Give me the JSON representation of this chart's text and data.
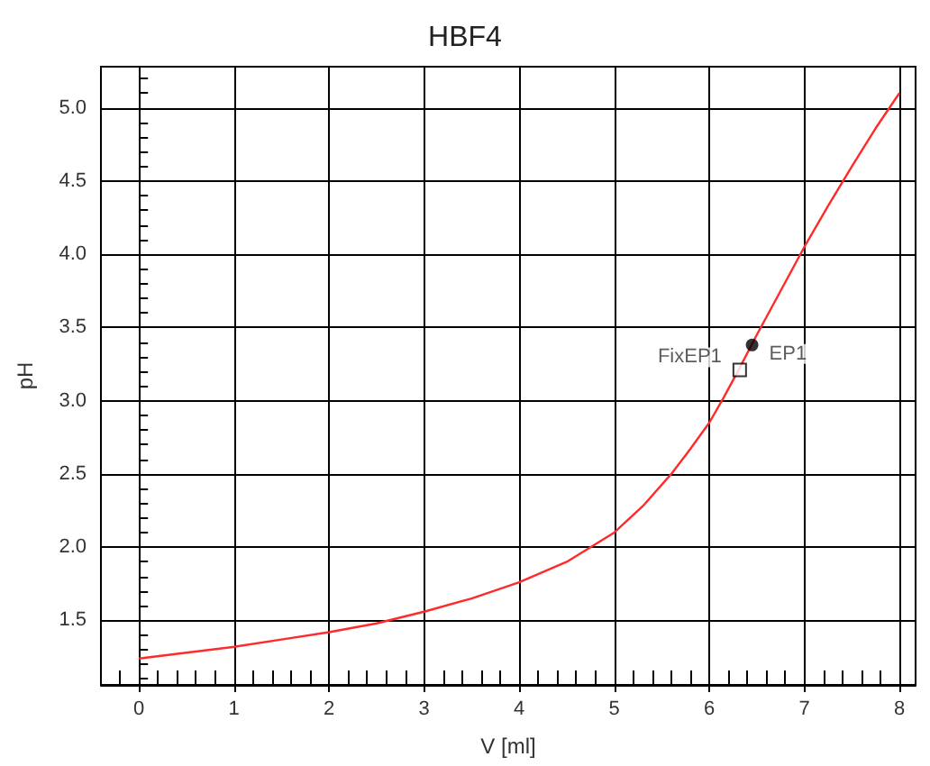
{
  "chart_data": {
    "type": "line",
    "title": "HBF4",
    "xlabel": "V [ml]",
    "ylabel": "pH",
    "xlim": [
      -0.4,
      8.17
    ],
    "ylim": [
      1.06,
      5.28
    ],
    "grid": true,
    "xticks": [
      {
        "value": -0.2,
        "label": null
      },
      0,
      {
        "value": 0.2,
        "label": null
      },
      {
        "value": 0.4,
        "label": null
      },
      {
        "value": 0.6,
        "label": null
      },
      {
        "value": 0.8,
        "label": null
      },
      1,
      {
        "value": 1.2,
        "label": null
      },
      {
        "value": 1.4,
        "label": null
      },
      {
        "value": 1.6,
        "label": null
      },
      {
        "value": 1.8,
        "label": null
      },
      2,
      {
        "value": 2.2,
        "label": null
      },
      {
        "value": 2.4,
        "label": null
      },
      {
        "value": 2.6,
        "label": null
      },
      {
        "value": 2.8,
        "label": null
      },
      3,
      {
        "value": 3.2,
        "label": null
      },
      {
        "value": 3.4,
        "label": null
      },
      {
        "value": 3.6,
        "label": null
      },
      {
        "value": 3.8,
        "label": null
      },
      4,
      {
        "value": 4.2,
        "label": null
      },
      {
        "value": 4.4,
        "label": null
      },
      {
        "value": 4.6,
        "label": null
      },
      {
        "value": 4.8,
        "label": null
      },
      5,
      {
        "value": 5.2,
        "label": null
      },
      {
        "value": 5.4,
        "label": null
      },
      {
        "value": 5.6,
        "label": null
      },
      {
        "value": 5.8,
        "label": null
      },
      6,
      {
        "value": 6.2,
        "label": null
      },
      {
        "value": 6.4,
        "label": null
      },
      {
        "value": 6.6,
        "label": null
      },
      {
        "value": 6.8,
        "label": null
      },
      7,
      {
        "value": 7.2,
        "label": null
      },
      {
        "value": 7.4,
        "label": null
      },
      {
        "value": 7.6,
        "label": null
      },
      {
        "value": 7.8,
        "label": null
      },
      8
    ],
    "yticks": [
      {
        "value": 1.1,
        "label": null
      },
      {
        "value": 1.2,
        "label": null
      },
      {
        "value": 1.3,
        "label": null
      },
      {
        "value": 1.4,
        "label": null
      },
      1.5,
      {
        "value": 1.6,
        "label": null
      },
      {
        "value": 1.7,
        "label": null
      },
      {
        "value": 1.8,
        "label": null
      },
      {
        "value": 1.9,
        "label": null
      },
      {
        "value": 2,
        "label": "2.0"
      },
      {
        "value": 2.1,
        "label": null
      },
      {
        "value": 2.2,
        "label": null
      },
      {
        "value": 2.3,
        "label": null
      },
      {
        "value": 2.4,
        "label": null
      },
      2.5,
      {
        "value": 2.6,
        "label": null
      },
      {
        "value": 2.7,
        "label": null
      },
      {
        "value": 2.8,
        "label": null
      },
      {
        "value": 2.9,
        "label": null
      },
      {
        "value": 3,
        "label": "3.0"
      },
      {
        "value": 3.1,
        "label": null
      },
      {
        "value": 3.2,
        "label": null
      },
      {
        "value": 3.3,
        "label": null
      },
      {
        "value": 3.4,
        "label": null
      },
      3.5,
      {
        "value": 3.6,
        "label": null
      },
      {
        "value": 3.7,
        "label": null
      },
      {
        "value": 3.8,
        "label": null
      },
      {
        "value": 3.9,
        "label": null
      },
      {
        "value": 4,
        "label": "4.0"
      },
      {
        "value": 4.1,
        "label": null
      },
      {
        "value": 4.2,
        "label": null
      },
      {
        "value": 4.3,
        "label": null
      },
      {
        "value": 4.4,
        "label": null
      },
      4.5,
      {
        "value": 4.6,
        "label": null
      },
      {
        "value": 4.7,
        "label": null
      },
      {
        "value": 4.8,
        "label": null
      },
      {
        "value": 4.9,
        "label": null
      },
      {
        "value": 5,
        "label": "5.0"
      },
      {
        "value": 5.1,
        "label": null
      },
      {
        "value": 5.2,
        "label": null
      }
    ],
    "series": [
      {
        "color": "#ff2a2a",
        "marker": "none",
        "x": [
          0,
          0.5,
          1,
          1.5,
          2,
          2.5,
          3,
          3.5,
          4,
          4.5,
          4.75,
          5,
          5.3,
          5.6,
          5.8,
          6,
          6.15,
          6.3,
          6.5,
          6.75,
          7,
          7.25,
          7.5,
          7.75,
          8
        ],
        "values": [
          1.24,
          1.28,
          1.32,
          1.37,
          1.42,
          1.48,
          1.56,
          1.65,
          1.76,
          1.9,
          2.0,
          2.1,
          2.28,
          2.5,
          2.67,
          2.85,
          3.02,
          3.2,
          3.45,
          3.75,
          4.05,
          4.33,
          4.6,
          4.86,
          5.1
        ]
      },
      {
        "type": "scatter",
        "name": "EP1",
        "color": "#000000",
        "marker": "circle",
        "x": [
          6.45
        ],
        "values": [
          3.38
        ]
      },
      {
        "type": "scatter",
        "name": "FixEP1",
        "color": "#000000",
        "marker": "square",
        "x": [
          6.32
        ],
        "values": [
          3.21
        ]
      }
    ]
  }
}
